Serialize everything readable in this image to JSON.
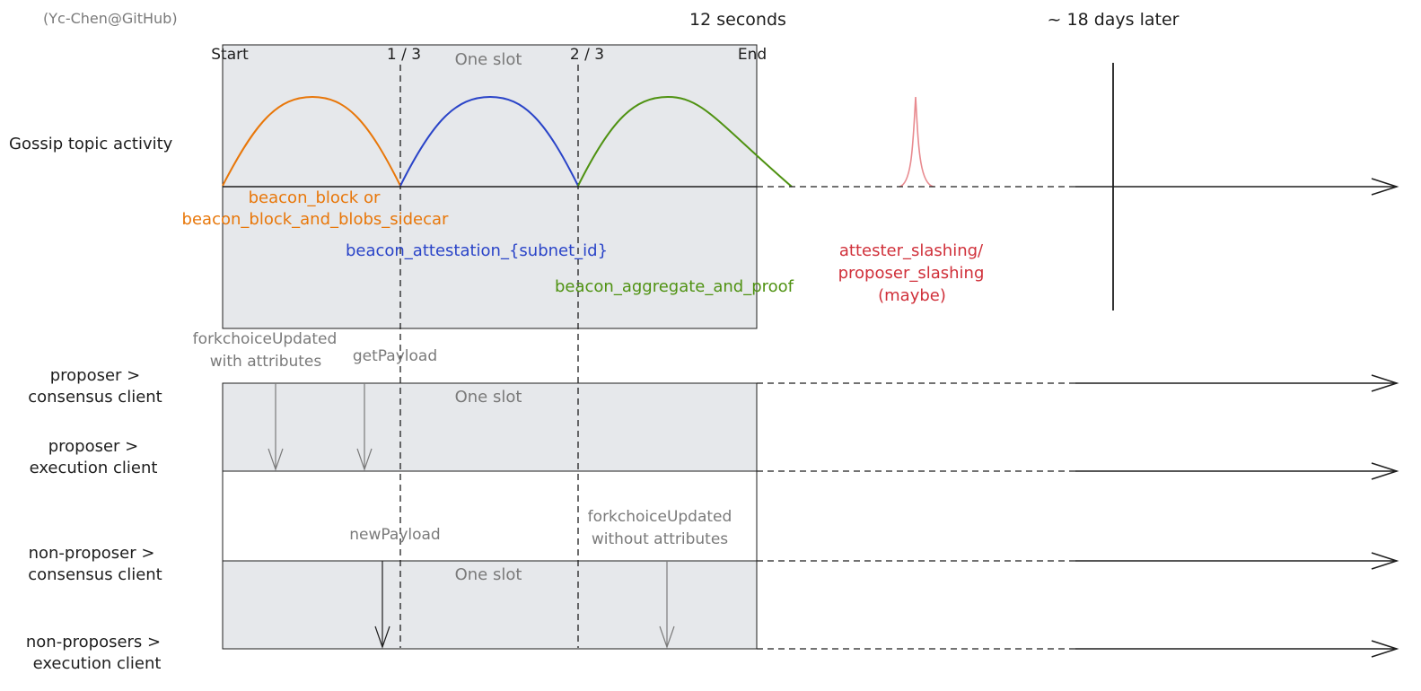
{
  "credit": "(Yc-Chen@GitHub)",
  "header": {
    "duration_label": "12 seconds",
    "later_label": "~ 18 days later"
  },
  "slot_marks": {
    "start": "Start",
    "one_third": "1 / 3",
    "two_thirds": "2 / 3",
    "end": "End"
  },
  "slot_label": "One slot",
  "rows": {
    "gossip": "Gossip topic activity",
    "proposer_cc": [
      "proposer >",
      "consensus client"
    ],
    "proposer_ec": [
      "proposer >",
      "execution client"
    ],
    "nonproposer_cc": [
      "non-proposer >",
      "consensus client"
    ],
    "nonproposer_ec": [
      "non-proposers >",
      "execution client"
    ]
  },
  "topics": {
    "block": [
      "beacon_block or",
      "beacon_block_and_blobs_sidecar"
    ],
    "attestation": "beacon_attestation_{subnet_id}",
    "aggregate": "beacon_aggregate_and_proof",
    "slashing": [
      "attester_slashing/",
      "proposer_slashing",
      "(maybe)"
    ]
  },
  "calls": {
    "fcu_with": [
      "forkchoiceUpdated",
      "with attributes"
    ],
    "get_payload": "getPayload",
    "new_payload": "newPayload",
    "fcu_without": [
      "forkchoiceUpdated",
      "without attributes"
    ]
  },
  "colors": {
    "block": "#e8770a",
    "attestation": "#2a44c8",
    "aggregate": "#4f9212",
    "slashing": "#d0303a",
    "slot_fill": "#e6e8eb",
    "ink": "#1e1e1e",
    "muted": "#7a7a7a"
  }
}
